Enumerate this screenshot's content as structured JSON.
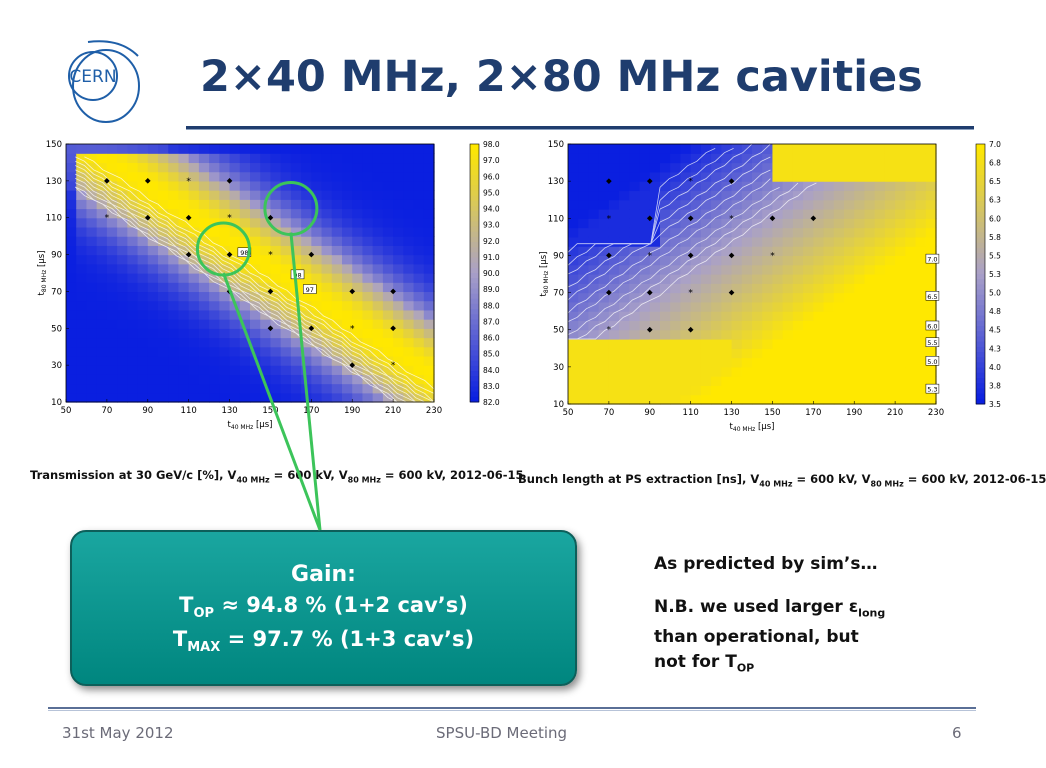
{
  "slide": {
    "title": "2×40 MHz, 2×80 MHz cavities",
    "logo_text": "CERN",
    "footer_date": "31st May 2012",
    "footer_meeting": "SPSU-BD Meeting",
    "page_number": "6"
  },
  "gain_box": {
    "heading": "Gain:",
    "op_prefix": "T",
    "op_sub": "OP",
    "op_text": " ≈ 94.8 % (1+2 cav’s)",
    "max_prefix": "T",
    "max_sub": "MAX",
    "max_text": " = 97.7 % (1+3 cav’s)"
  },
  "notes": {
    "line1": "As predicted by sim’s…",
    "line2_prefix": "N.B. we used larger ε",
    "line2_sub": "long",
    "line3": "than operational, but",
    "line4_prefix": "not for T",
    "line4_sub": "OP"
  },
  "colors": {
    "title": "#1f3d6e",
    "gain_box": "#109a93",
    "highlight_circle": "#3cc45a",
    "low": "#0a1fe0",
    "high": "#ffe800"
  },
  "chart_data": [
    {
      "type": "heatmap",
      "caption_prefix": "Transmission at 30 GeV/c [%], V",
      "caption_sub1": "40 MHz",
      "caption_mid": " = 600 kV, V",
      "caption_sub2": "80 MHz",
      "caption_suffix": " = 600 kV, 2012-06-15",
      "xlabel": "t",
      "xlabel_sub": "40 MHz",
      "xlabel_unit": " [μs]",
      "ylabel": "t",
      "ylabel_sub": "80 MHz",
      "ylabel_unit": " [μs]",
      "x_ticks": [
        50,
        70,
        90,
        110,
        130,
        150,
        170,
        190,
        210,
        230
      ],
      "y_ticks": [
        10,
        30,
        50,
        70,
        90,
        110,
        130,
        150
      ],
      "xlim": [
        50,
        230
      ],
      "ylim": [
        10,
        150
      ],
      "colorbar": {
        "min": 82.0,
        "max": 98.0,
        "ticks": [
          "98.0",
          "97.0",
          "96.0",
          "95.0",
          "94.0",
          "93.0",
          "92.0",
          "91.0",
          "90.0",
          "89.0",
          "88.0",
          "87.0",
          "86.0",
          "85.0",
          "84.0",
          "83.0",
          "82.0"
        ]
      },
      "annotations": [
        {
          "x": 137,
          "y": 91,
          "label": "98"
        },
        {
          "x": 163,
          "y": 79,
          "label": "98"
        },
        {
          "x": 169,
          "y": 71,
          "label": "97"
        }
      ],
      "highlights": [
        {
          "x": 127,
          "y": 93,
          "label": "T_MAX"
        },
        {
          "x": 160,
          "y": 115,
          "label": "T_OP"
        }
      ]
    },
    {
      "type": "heatmap",
      "caption_prefix": "Bunch length at PS extraction [ns], V",
      "caption_sub1": "40 MHz",
      "caption_mid": " = 600 kV, V",
      "caption_sub2": "80 MHz",
      "caption_suffix": " = 600 kV, 2012-06-15",
      "xlabel": "t",
      "xlabel_sub": "40 MHz",
      "xlabel_unit": " [μs]",
      "ylabel": "t",
      "ylabel_sub": "80 MHz",
      "ylabel_unit": " [μs]",
      "x_ticks": [
        50,
        70,
        90,
        110,
        130,
        150,
        170,
        190,
        210,
        230
      ],
      "y_ticks": [
        10,
        30,
        50,
        70,
        90,
        110,
        130,
        150
      ],
      "xlim": [
        50,
        230
      ],
      "ylim": [
        10,
        150
      ],
      "colorbar": {
        "min": 3.5,
        "max": 7.0,
        "ticks": [
          "7.0",
          "6.8",
          "6.5",
          "6.3",
          "6.0",
          "5.8",
          "5.5",
          "5.3",
          "5.0",
          "4.8",
          "4.5",
          "4.3",
          "4.0",
          "3.8",
          "3.5"
        ]
      },
      "annotations": [
        {
          "x": 228,
          "y": 88,
          "label": "7.0"
        },
        {
          "x": 228,
          "y": 68,
          "label": "6.5"
        },
        {
          "x": 228,
          "y": 52,
          "label": "6.0"
        },
        {
          "x": 228,
          "y": 43,
          "label": "5.5"
        },
        {
          "x": 228,
          "y": 33,
          "label": "5.0"
        },
        {
          "x": 228,
          "y": 18,
          "label": "5.3"
        }
      ]
    }
  ]
}
